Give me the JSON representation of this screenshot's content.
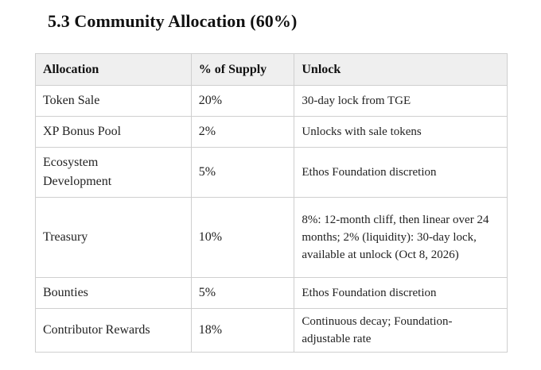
{
  "section": {
    "title": "5.3 Community Allocation (60%)"
  },
  "table": {
    "headers": {
      "allocation": "Allocation",
      "supply": "% of Supply",
      "unlock": "Unlock"
    },
    "rows": [
      {
        "allocation": "Token Sale",
        "supply": "20%",
        "unlock": "30-day lock from TGE"
      },
      {
        "allocation": "XP Bonus Pool",
        "supply": "2%",
        "unlock": "Unlocks with sale tokens"
      },
      {
        "allocation": "Ecosystem Development",
        "supply": "5%",
        "unlock": "Ethos Foundation discretion"
      },
      {
        "allocation": "Treasury",
        "supply": "10%",
        "unlock": "8%: 12-month cliff, then linear over 24 months; 2% (liquidity): 30-day lock, available at unlock (Oct 8, 2026)"
      },
      {
        "allocation": "Bounties",
        "supply": "5%",
        "unlock": "Ethos Foundation discretion"
      },
      {
        "allocation": "Contributor Rewards",
        "supply": "18%",
        "unlock": "Continuous decay; Foundation-adjustable rate"
      }
    ]
  }
}
